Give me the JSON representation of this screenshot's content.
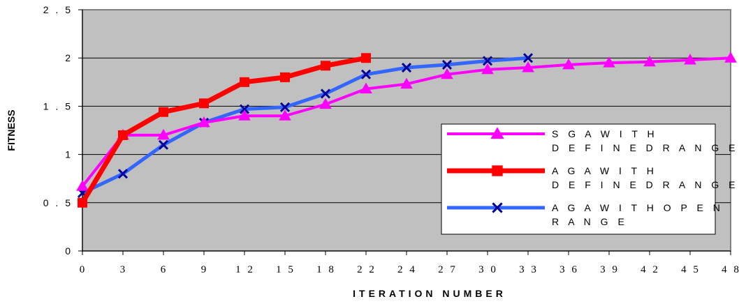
{
  "chart_data": {
    "type": "line",
    "title": "",
    "xlabel": "ITERATION NUMBER",
    "ylabel": "FITNESS",
    "ylim": [
      0,
      2.5
    ],
    "yticks": [
      "0",
      "0 . 5",
      "1",
      "1 . 5",
      "2",
      "2 . 5"
    ],
    "categories": [
      "0",
      "3",
      "6",
      "9",
      "1 2",
      "1 5",
      "1 8",
      "2 2",
      "2 4",
      "2 7",
      "3 0",
      "3 3",
      "3 6",
      "3 9",
      "4 2",
      "4 5",
      "4 8"
    ],
    "grid": true,
    "legend_position": "right",
    "series": [
      {
        "name_lines": [
          "S G A  W I T H",
          "D E F I N E D  R A N G E"
        ],
        "color": "#ff00ff",
        "marker": "triangle",
        "points": [
          {
            "x": 0,
            "y": 0.67
          },
          {
            "x": 1,
            "y": 1.2
          },
          {
            "x": 2,
            "y": 1.2
          },
          {
            "x": 3,
            "y": 1.33
          },
          {
            "x": 4,
            "y": 1.4
          },
          {
            "x": 5,
            "y": 1.4
          },
          {
            "x": 6,
            "y": 1.52
          },
          {
            "x": 7,
            "y": 1.68
          },
          {
            "x": 8,
            "y": 1.73
          },
          {
            "x": 9,
            "y": 1.83
          },
          {
            "x": 10,
            "y": 1.88
          },
          {
            "x": 11,
            "y": 1.9
          },
          {
            "x": 12,
            "y": 1.93
          },
          {
            "x": 13,
            "y": 1.95
          },
          {
            "x": 14,
            "y": 1.96
          },
          {
            "x": 15,
            "y": 1.98
          },
          {
            "x": 16,
            "y": 2.0
          }
        ]
      },
      {
        "name_lines": [
          "A G A  W I T H",
          "D E F I N E D  R A N G E"
        ],
        "color": "#ff0000",
        "marker": "square",
        "points": [
          {
            "x": 0,
            "y": 0.5
          },
          {
            "x": 1,
            "y": 1.2
          },
          {
            "x": 2,
            "y": 1.44
          },
          {
            "x": 3,
            "y": 1.53
          },
          {
            "x": 4,
            "y": 1.75
          },
          {
            "x": 5,
            "y": 1.8
          },
          {
            "x": 6,
            "y": 1.92
          },
          {
            "x": 7,
            "y": 2.0
          }
        ]
      },
      {
        "name_lines": [
          "A G A  W I T H  O P E N",
          "R A N G E"
        ],
        "color": "#3366ff",
        "marker": "x",
        "points": [
          {
            "x": 0,
            "y": 0.6
          },
          {
            "x": 1,
            "y": 0.8
          },
          {
            "x": 2,
            "y": 1.1
          },
          {
            "x": 3,
            "y": 1.33
          },
          {
            "x": 4,
            "y": 1.47
          },
          {
            "x": 5,
            "y": 1.49
          },
          {
            "x": 6,
            "y": 1.63
          },
          {
            "x": 7,
            "y": 1.83
          },
          {
            "x": 8,
            "y": 1.9
          },
          {
            "x": 9,
            "y": 1.93
          },
          {
            "x": 10,
            "y": 1.97
          },
          {
            "x": 11,
            "y": 2.0
          }
        ]
      }
    ]
  }
}
